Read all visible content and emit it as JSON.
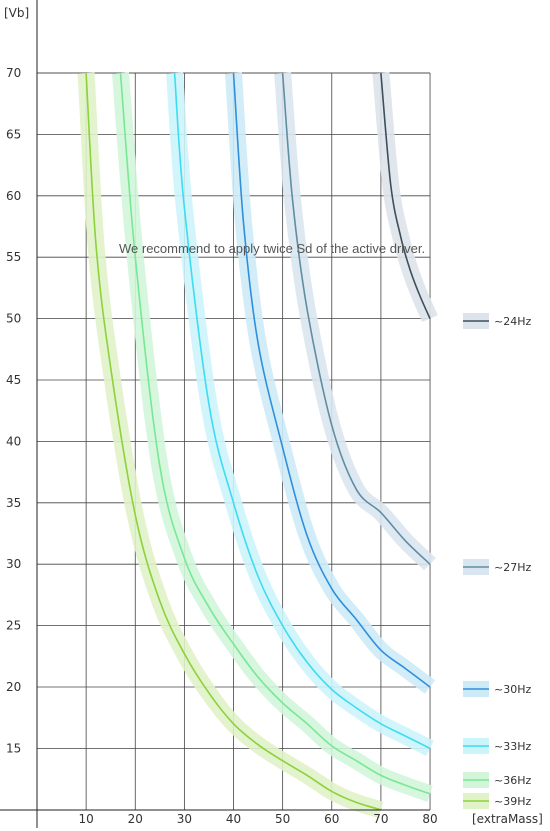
{
  "chart_data": {
    "type": "line",
    "title": "",
    "ylabel": "[Vb]",
    "xlabel": "[extraMass]",
    "annotation": "We recommend to apply twice Sd of the active driver.",
    "xlim": [
      0,
      80
    ],
    "ylim": [
      10,
      70
    ],
    "xticks": [
      10,
      20,
      30,
      40,
      50,
      60,
      70,
      80
    ],
    "yticks": [
      15,
      20,
      25,
      30,
      35,
      40,
      45,
      50,
      55,
      60,
      65,
      70
    ],
    "grid": true,
    "legend_position": "right",
    "series": [
      {
        "name": "~24Hz",
        "color": "#3c4f5c",
        "band": "#dde3ea",
        "x": [
          70,
          72,
          74,
          76,
          78,
          80
        ],
        "y": [
          70,
          60.9,
          56.7,
          53.9,
          51.8,
          50
        ]
      },
      {
        "name": "~27Hz",
        "color": "#5f8ea3",
        "band": "#d9e6f0",
        "x": [
          50,
          52,
          55,
          60,
          65,
          70,
          75,
          80
        ],
        "y": [
          70,
          59.7,
          50.7,
          41.3,
          36.1,
          34.2,
          31.9,
          30
        ]
      },
      {
        "name": "~30Hz",
        "color": "#2f8fdc",
        "band": "#cdebf7",
        "x": [
          40,
          42,
          45,
          50,
          55,
          60,
          65,
          70,
          75,
          80
        ],
        "y": [
          70,
          58,
          48,
          39.5,
          32.3,
          28,
          25.5,
          23,
          21.5,
          20
        ]
      },
      {
        "name": "~33Hz",
        "color": "#3ddcf2",
        "band": "#ccf4fb",
        "x": [
          28,
          30,
          35,
          40,
          45,
          50,
          55,
          60,
          65,
          70,
          75,
          80
        ],
        "y": [
          70,
          59,
          43,
          35,
          29,
          25,
          22,
          19.8,
          18.3,
          17,
          16,
          15
        ]
      },
      {
        "name": "~36Hz",
        "color": "#78e894",
        "band": "#d2f5da",
        "x": [
          17,
          20,
          25,
          30,
          35,
          40,
          45,
          50,
          55,
          60,
          65,
          70,
          75,
          80
        ],
        "y": [
          70,
          55,
          38,
          30.5,
          26.5,
          23.5,
          20.8,
          18.7,
          17,
          15.2,
          14,
          12.8,
          12,
          11.3
        ]
      },
      {
        "name": "~39Hz",
        "color": "#8bd23c",
        "band": "#e0f2c8",
        "x": [
          10,
          12,
          15,
          20,
          25,
          30,
          35,
          40,
          45,
          50,
          55,
          60,
          65,
          70
        ],
        "y": [
          70,
          56,
          46,
          34,
          27,
          22.7,
          19.5,
          17,
          15.3,
          14,
          12.8,
          11.5,
          10.6,
          10
        ]
      }
    ]
  }
}
